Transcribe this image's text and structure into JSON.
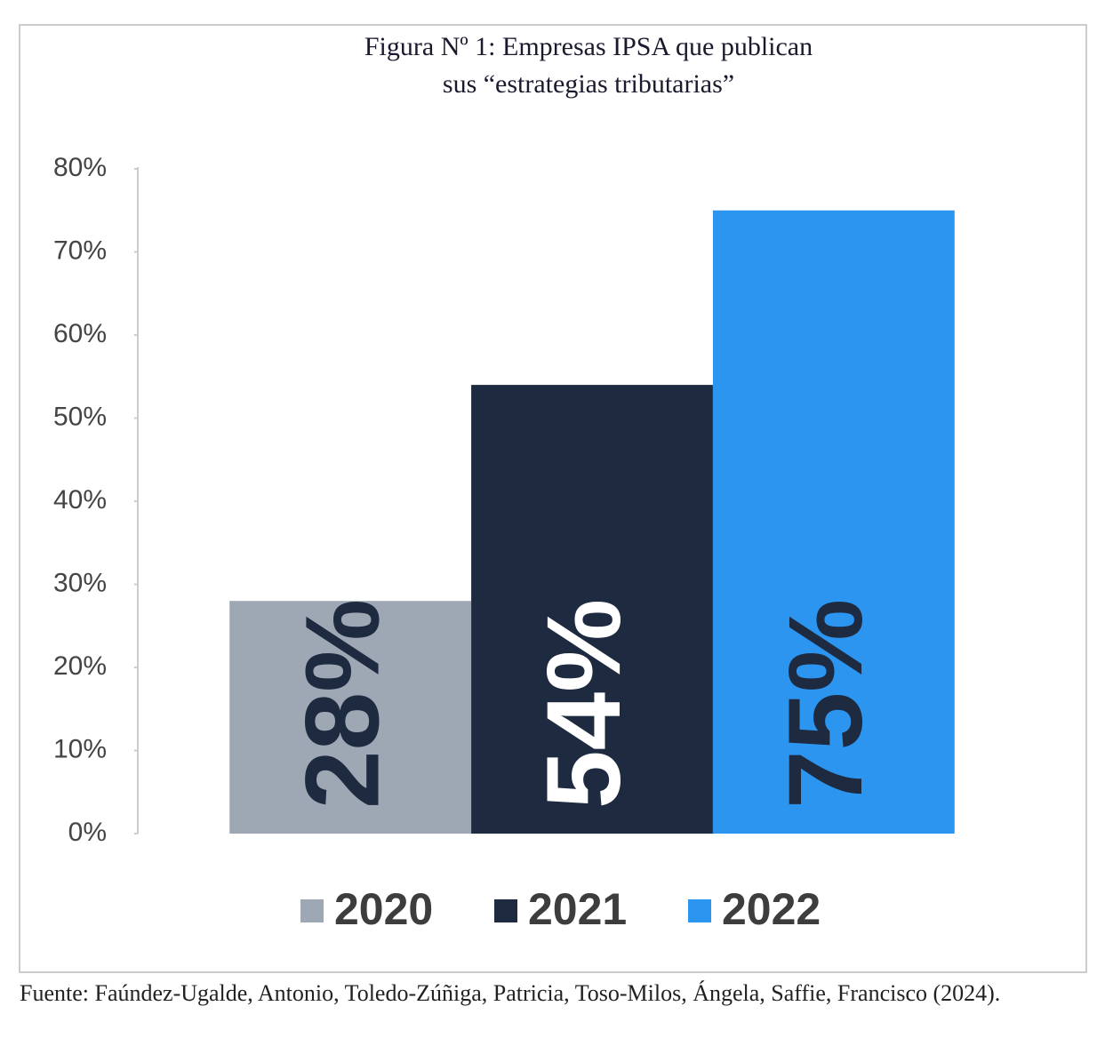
{
  "chart_data": {
    "type": "bar",
    "title": [
      "Figura Nº 1: Empresas IPSA que publican",
      "sus “estrategias tributarias”"
    ],
    "categories": [
      null
    ],
    "series": [
      {
        "name": "2020",
        "color": "#9ea7b4",
        "label_color": "#1e2a40",
        "values": [
          28
        ],
        "value_labels": [
          "28%"
        ]
      },
      {
        "name": "2021",
        "color": "#1e2a40",
        "label_color": "#ffffff",
        "values": [
          54
        ],
        "value_labels": [
          "54%"
        ]
      },
      {
        "name": "2022",
        "color": "#2b95f0",
        "label_color": "#1e2a40",
        "values": [
          75
        ],
        "value_labels": [
          "75%"
        ]
      }
    ],
    "ylim": [
      0,
      80
    ],
    "yticks": [
      {
        "value": 0,
        "label": "0%"
      },
      {
        "value": 10,
        "label": "10%"
      },
      {
        "value": 20,
        "label": "20%"
      },
      {
        "value": 30,
        "label": "30%"
      },
      {
        "value": 40,
        "label": "40%"
      },
      {
        "value": 50,
        "label": "50%"
      },
      {
        "value": 60,
        "label": "60%"
      },
      {
        "value": 70,
        "label": "70%"
      },
      {
        "value": 80,
        "label": "80%"
      }
    ],
    "grid": false,
    "legend": "bottom",
    "source": "Fuente: Faúndez-Ugalde, Antonio, Toledo-Zúñiga, Patricia, Toso-Milos, Ángela, Saffie, Francisco (2024)."
  }
}
